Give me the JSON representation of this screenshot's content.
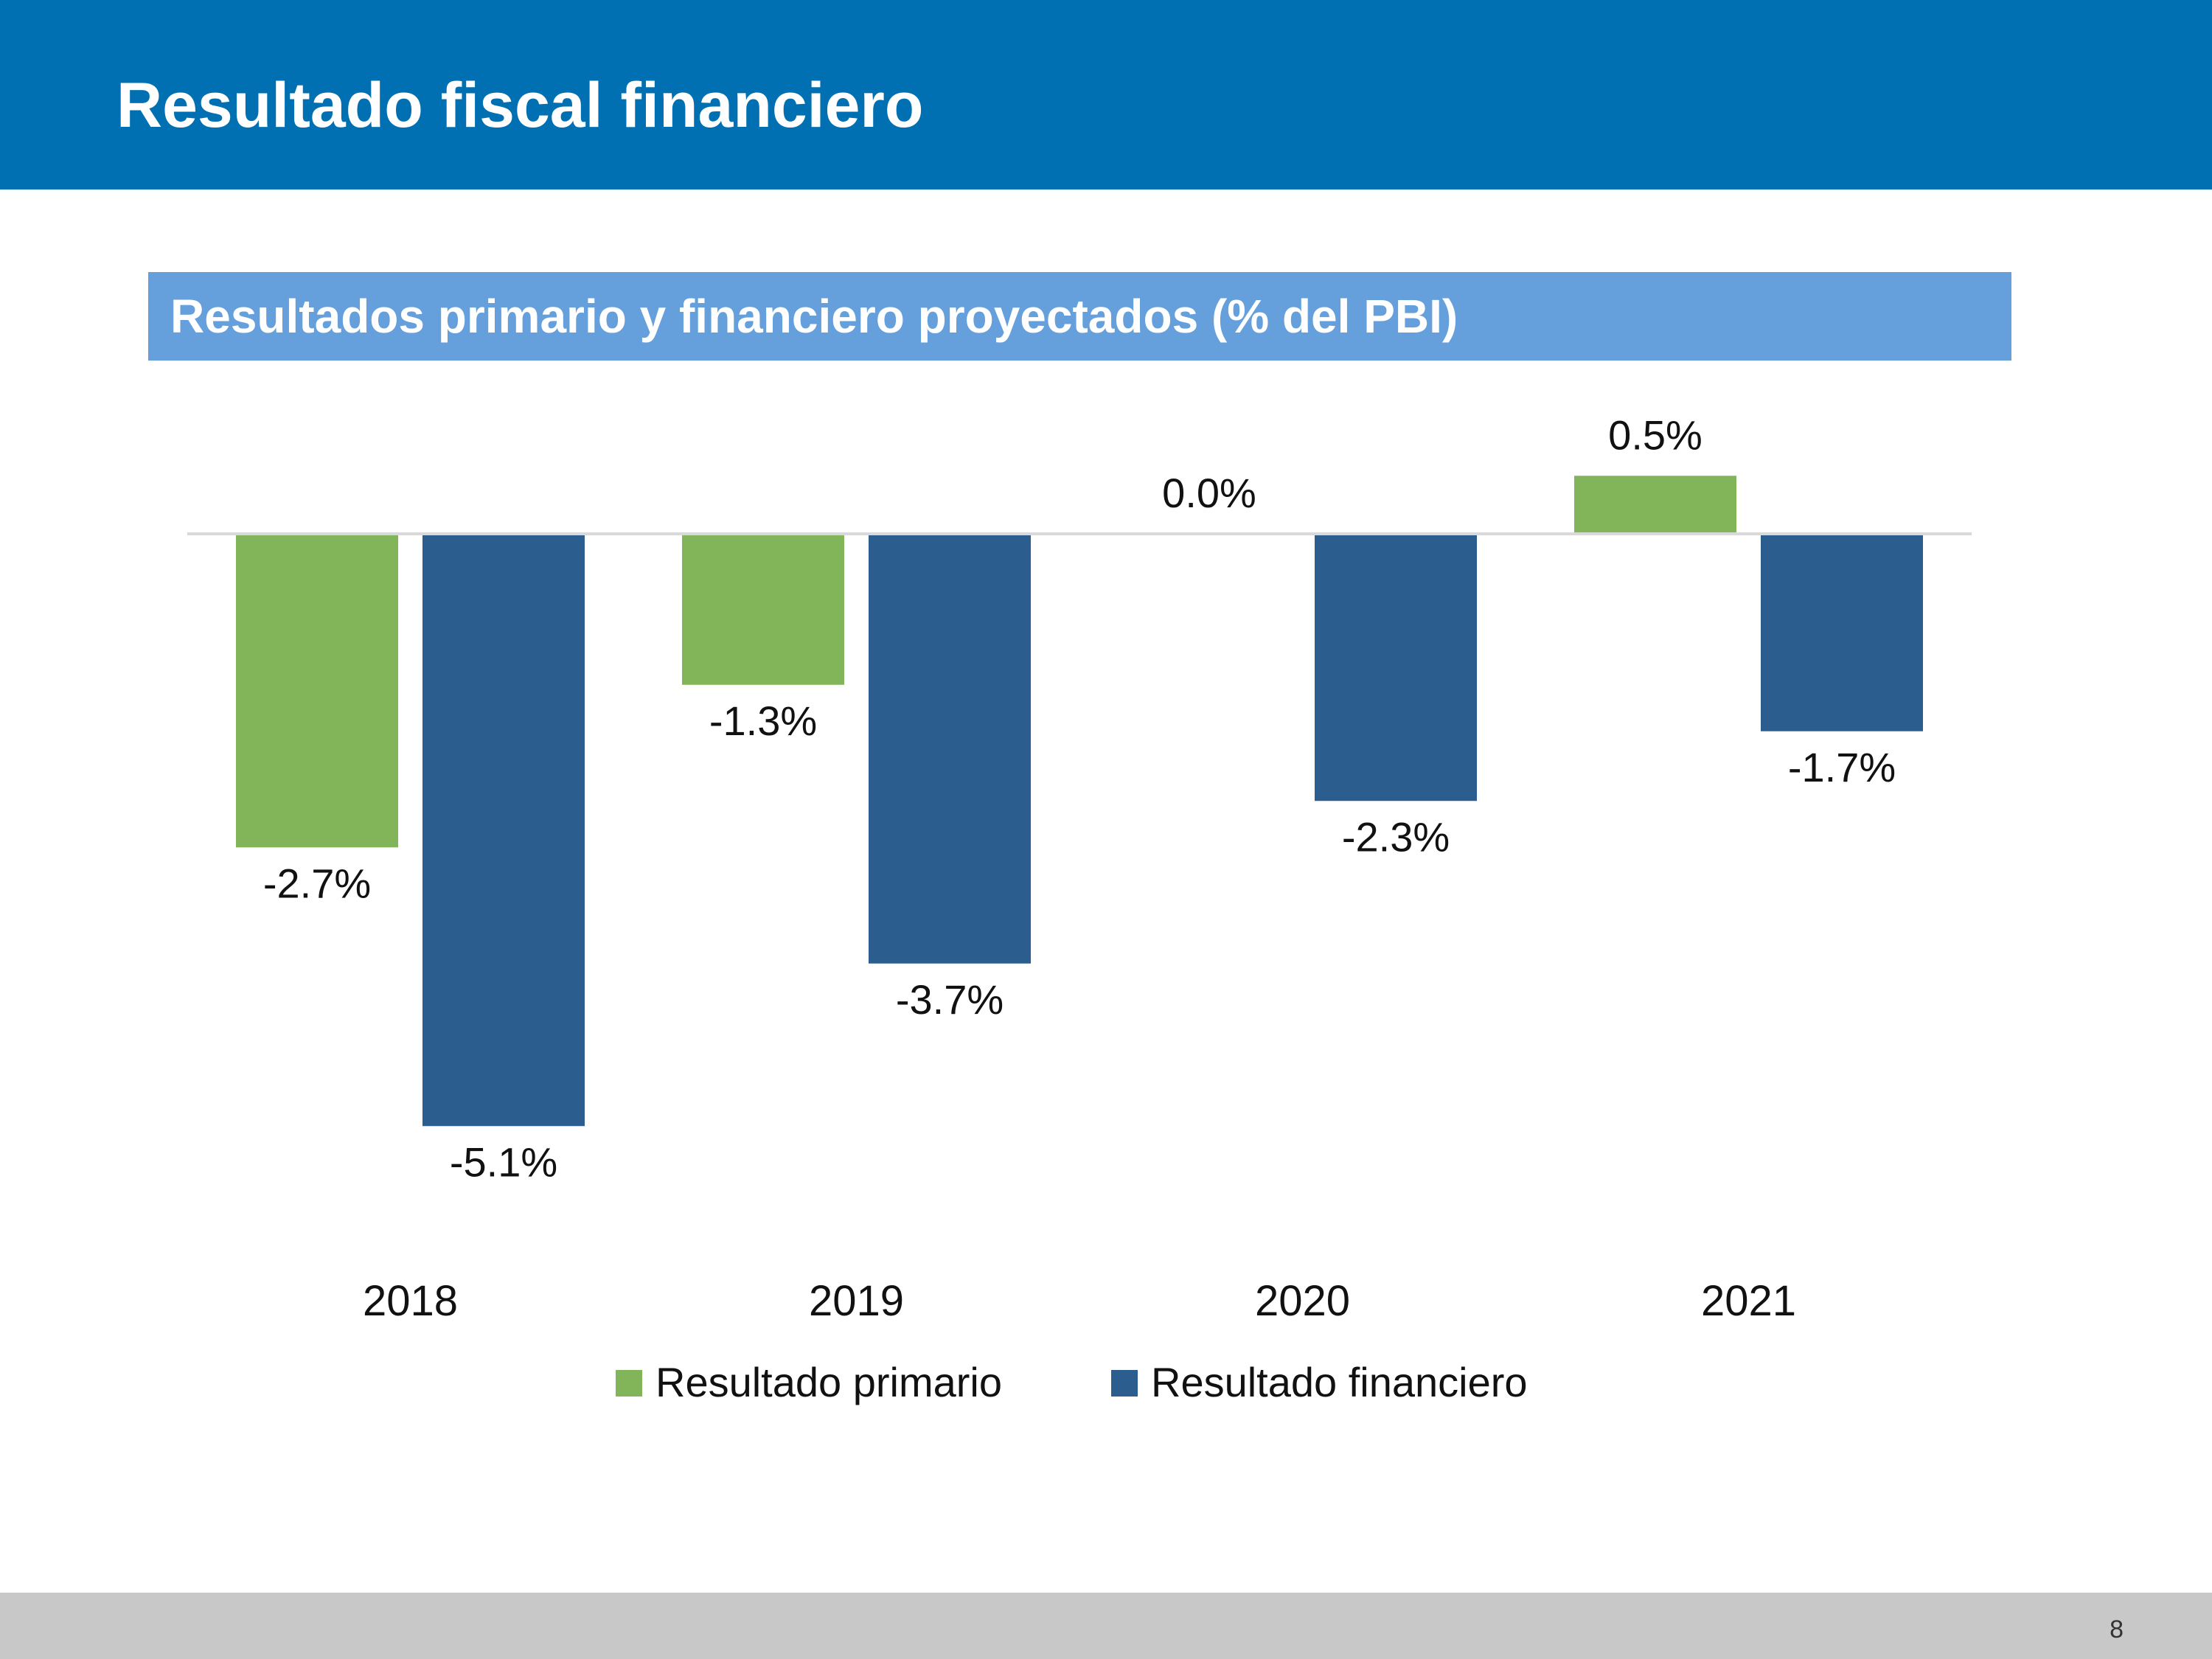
{
  "header": {
    "title": "Resultado fiscal financiero"
  },
  "footer": {
    "page_number": "8"
  },
  "colors": {
    "header_bg": "#0070b2",
    "subtitle_bg": "#65a0dc",
    "primario": "#82b55a",
    "financiero": "#2b5d8e",
    "footer_bg": "#c8c8c8"
  },
  "chart_data": {
    "type": "bar",
    "title": "Resultados primario y financiero proyectados (% del PBI)",
    "categories": [
      "2018",
      "2019",
      "2020",
      "2021"
    ],
    "series": [
      {
        "name": "Resultado primario",
        "color": "#82b55a",
        "values": [
          -2.7,
          -1.3,
          0.0,
          0.5
        ],
        "labels": [
          "-2.7%",
          "-1.3%",
          "0.0%",
          "0.5%"
        ]
      },
      {
        "name": "Resultado financiero",
        "color": "#2b5d8e",
        "values": [
          -5.1,
          -3.7,
          -2.3,
          -1.7
        ],
        "labels": [
          "-5.1%",
          "-3.7%",
          "-2.3%",
          "-1.7%"
        ]
      }
    ],
    "grid": false,
    "legend": "bottom",
    "xlabel": "",
    "ylabel": ""
  }
}
